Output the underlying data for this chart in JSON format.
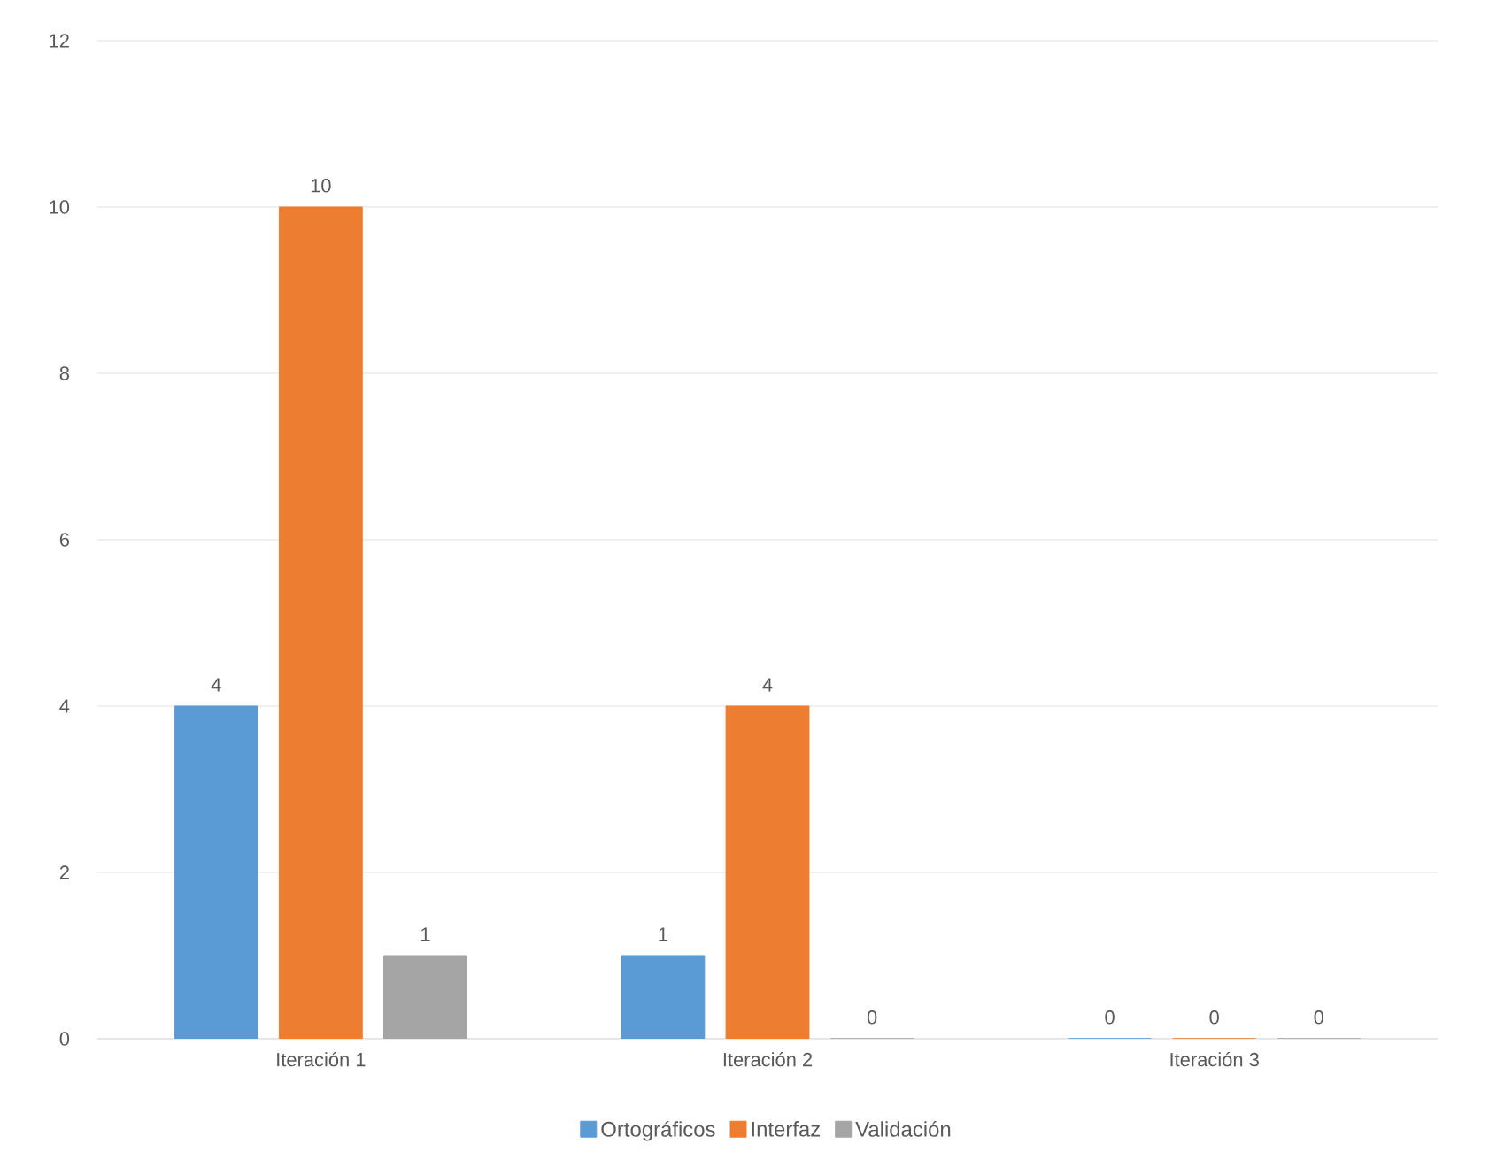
{
  "chart_data": {
    "type": "bar",
    "categories": [
      "Iteración 1",
      "Iteración 2",
      "Iteración 3"
    ],
    "series": [
      {
        "name": "Ortográficos",
        "color": "#5b9bd5",
        "values": [
          4,
          1,
          0
        ]
      },
      {
        "name": "Interfaz",
        "color": "#ed7d31",
        "values": [
          10,
          4,
          0
        ]
      },
      {
        "name": "Validación",
        "color": "#a5a5a5",
        "values": [
          1,
          0,
          0
        ]
      }
    ],
    "ylim": [
      0,
      12
    ],
    "yticks": [
      0,
      2,
      4,
      6,
      8,
      10,
      12
    ],
    "grid": "y",
    "legend": "bottom",
    "data_labels": true
  }
}
